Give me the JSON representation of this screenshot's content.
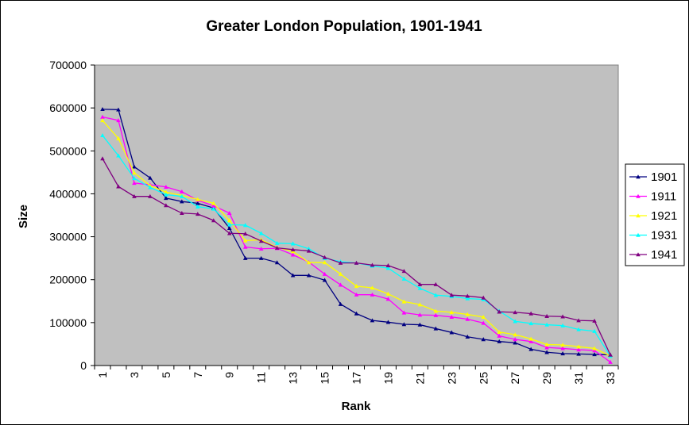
{
  "chart_data": {
    "type": "line",
    "title": "Greater London Population, 1901-1941",
    "xlabel": "Rank",
    "ylabel": "Size",
    "ylim": [
      0,
      700000
    ],
    "yticks": [
      0,
      100000,
      200000,
      300000,
      400000,
      500000,
      600000,
      700000
    ],
    "ytick_labels": [
      "0",
      "100000",
      "200000",
      "300000",
      "400000",
      "500000",
      "600000",
      "700000"
    ],
    "xtick_labels": [
      "1",
      "3",
      "5",
      "7",
      "9",
      "11",
      "13",
      "15",
      "17",
      "19",
      "21",
      "23",
      "25",
      "27",
      "29",
      "31",
      "33"
    ],
    "x": [
      1,
      2,
      3,
      4,
      5,
      6,
      7,
      8,
      9,
      10,
      11,
      12,
      13,
      14,
      15,
      16,
      17,
      18,
      19,
      20,
      21,
      22,
      23,
      24,
      25,
      26,
      27,
      28,
      29,
      30,
      31,
      32,
      33
    ],
    "plot_background": "#c0c0c0",
    "grid": false,
    "legend_position": "right",
    "series": [
      {
        "name": "1901",
        "color": "#000080",
        "marker": "triangle",
        "values": [
          597000,
          596000,
          463000,
          437000,
          390000,
          382000,
          378000,
          367000,
          320000,
          250000,
          250000,
          240000,
          210000,
          210000,
          199000,
          143000,
          121000,
          105000,
          101000,
          96000,
          95000,
          86000,
          77000,
          67000,
          61000,
          56000,
          53000,
          38000,
          31000,
          28000,
          27000,
          26000,
          25000
        ]
      },
      {
        "name": "1911",
        "color": "#ff00ff",
        "marker": "triangle",
        "values": [
          579000,
          571000,
          425000,
          421000,
          416000,
          405000,
          385000,
          372000,
          355000,
          276000,
          272000,
          273000,
          258000,
          241000,
          213000,
          188000,
          165000,
          165000,
          155000,
          123000,
          118000,
          117000,
          113000,
          108000,
          99000,
          69000,
          61000,
          56000,
          42000,
          40000,
          37000,
          35000,
          8000
        ]
      },
      {
        "name": "1921",
        "color": "#ffff00",
        "marker": "triangle",
        "values": [
          571000,
          529000,
          449000,
          419000,
          404000,
          396000,
          387000,
          378000,
          338000,
          291000,
          293000,
          275000,
          266000,
          240000,
          240000,
          213000,
          185000,
          181000,
          167000,
          149000,
          142000,
          127000,
          124000,
          119000,
          113000,
          78000,
          72000,
          62000,
          49000,
          48000,
          44000,
          40000,
          22000
        ]
      },
      {
        "name": "1931",
        "color": "#00ffff",
        "marker": "triangle",
        "values": [
          536000,
          489000,
          436000,
          415000,
          398000,
          394000,
          370000,
          365000,
          328000,
          327000,
          308000,
          285000,
          284000,
          272000,
          250000,
          242000,
          239000,
          232000,
          227000,
          202000,
          180000,
          164000,
          161000,
          156000,
          154000,
          127000,
          103000,
          98000,
          95000,
          93000,
          84000,
          80000,
          22000
        ]
      },
      {
        "name": "1941",
        "color": "#800080",
        "marker": "triangle",
        "values": [
          482000,
          417000,
          394000,
          394000,
          373000,
          355000,
          353000,
          338000,
          308000,
          307000,
          290000,
          274000,
          270000,
          267000,
          252000,
          239000,
          239000,
          234000,
          233000,
          220000,
          189000,
          189000,
          164000,
          162000,
          158000,
          125000,
          124000,
          121000,
          115000,
          114000,
          105000,
          104000,
          25000
        ]
      }
    ]
  }
}
